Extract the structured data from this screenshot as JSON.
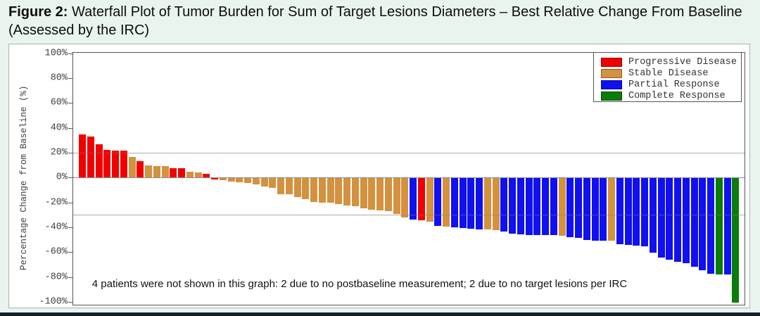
{
  "figure": {
    "title_prefix": "Figure 2:",
    "title_rest": " Waterfall Plot of Tumor Burden for Sum of Target Lesions Diameters – Best Relative Change From Baseline (Assessed by the IRC)"
  },
  "chart_data": {
    "type": "bar",
    "subtype": "waterfall",
    "title": "",
    "xlabel": "",
    "ylabel": "Percentage Change from Baseline (%)",
    "ylim": [
      -100,
      100
    ],
    "yticks": [
      {
        "v": 100,
        "label": "100%"
      },
      {
        "v": 80,
        "label": "80%"
      },
      {
        "v": 60,
        "label": "60%"
      },
      {
        "v": 40,
        "label": "40%"
      },
      {
        "v": 20,
        "label": "20%"
      },
      {
        "v": 0,
        "label": "0%"
      },
      {
        "v": -20,
        "label": "-20%"
      },
      {
        "v": -40,
        "label": "-40%"
      },
      {
        "v": -60,
        "label": "-60%"
      },
      {
        "v": -80,
        "label": "-80%"
      },
      {
        "v": -100,
        "label": "-100%"
      }
    ],
    "reference_lines": [
      20,
      -30
    ],
    "zero_line": 0,
    "grid": "reference lines at +20% and -30% only",
    "legend_position": "top-right inside plot",
    "legend": [
      {
        "key": "PD",
        "label": "Progressive Disease",
        "color": "#f10000"
      },
      {
        "key": "SD",
        "label": "Stable Disease",
        "color": "#d4913e"
      },
      {
        "key": "PR",
        "label": "Partial Response",
        "color": "#1010f0"
      },
      {
        "key": "CR",
        "label": "Complete Response",
        "color": "#0a7c0a"
      }
    ],
    "note": "4 patients were not shown in this graph: 2 due to no postbaseline measurement; 2 due to no target lesions per IRC",
    "bars": [
      [
        35,
        "PD"
      ],
      [
        33,
        "PD"
      ],
      [
        27,
        "PD"
      ],
      [
        22,
        "PD"
      ],
      [
        21.7,
        "PD"
      ],
      [
        21.5,
        "PD"
      ],
      [
        16.7,
        "SD"
      ],
      [
        13,
        "PD"
      ],
      [
        9.7,
        "SD"
      ],
      [
        9.4,
        "SD"
      ],
      [
        9,
        "SD"
      ],
      [
        7.8,
        "PD"
      ],
      [
        7.4,
        "PD"
      ],
      [
        4.9,
        "SD"
      ],
      [
        4.3,
        "SD"
      ],
      [
        3,
        "PD"
      ],
      [
        -1,
        "PD"
      ],
      [
        -1.8,
        "SD"
      ],
      [
        -2.7,
        "SD"
      ],
      [
        -3.2,
        "SD"
      ],
      [
        -4,
        "SD"
      ],
      [
        -5,
        "SD"
      ],
      [
        -6.9,
        "SD"
      ],
      [
        -7.8,
        "SD"
      ],
      [
        -12.8,
        "SD"
      ],
      [
        -13.1,
        "SD"
      ],
      [
        -15.4,
        "SD"
      ],
      [
        -16.6,
        "SD"
      ],
      [
        -18.9,
        "SD"
      ],
      [
        -19.4,
        "SD"
      ],
      [
        -19.4,
        "SD"
      ],
      [
        -20.8,
        "SD"
      ],
      [
        -22.1,
        "SD"
      ],
      [
        -22.7,
        "SD"
      ],
      [
        -24.2,
        "SD"
      ],
      [
        -25.1,
        "SD"
      ],
      [
        -26.1,
        "SD"
      ],
      [
        -26.5,
        "SD"
      ],
      [
        -28.5,
        "SD"
      ],
      [
        -31.5,
        "SD"
      ],
      [
        -33,
        "PR"
      ],
      [
        -34,
        "PD"
      ],
      [
        -35,
        "SD"
      ],
      [
        -38.3,
        "PR"
      ],
      [
        -39,
        "SD"
      ],
      [
        -39.5,
        "PR"
      ],
      [
        -40.3,
        "PR"
      ],
      [
        -40.9,
        "PR"
      ],
      [
        -41,
        "PR"
      ],
      [
        -41.2,
        "SD"
      ],
      [
        -41.5,
        "SD"
      ],
      [
        -42.7,
        "PR"
      ],
      [
        -44.6,
        "PR"
      ],
      [
        -45.1,
        "PR"
      ],
      [
        -45.5,
        "PR"
      ],
      [
        -45.5,
        "PR"
      ],
      [
        -46,
        "PR"
      ],
      [
        -46,
        "PR"
      ],
      [
        -46.5,
        "SD"
      ],
      [
        -47.5,
        "PR"
      ],
      [
        -48,
        "PR"
      ],
      [
        -49.8,
        "PR"
      ],
      [
        -50,
        "PR"
      ],
      [
        -50,
        "PR"
      ],
      [
        -50.3,
        "SD"
      ],
      [
        -53,
        "PR"
      ],
      [
        -53.7,
        "PR"
      ],
      [
        -54,
        "PR"
      ],
      [
        -55,
        "PR"
      ],
      [
        -59.8,
        "PR"
      ],
      [
        -63.6,
        "PR"
      ],
      [
        -65.5,
        "PR"
      ],
      [
        -67.4,
        "PR"
      ],
      [
        -68.4,
        "PR"
      ],
      [
        -71.3,
        "PR"
      ],
      [
        -74,
        "PR"
      ],
      [
        -77,
        "PR"
      ],
      [
        -77.4,
        "CR"
      ],
      [
        -77.4,
        "PR"
      ],
      [
        -100,
        "CR"
      ]
    ]
  }
}
